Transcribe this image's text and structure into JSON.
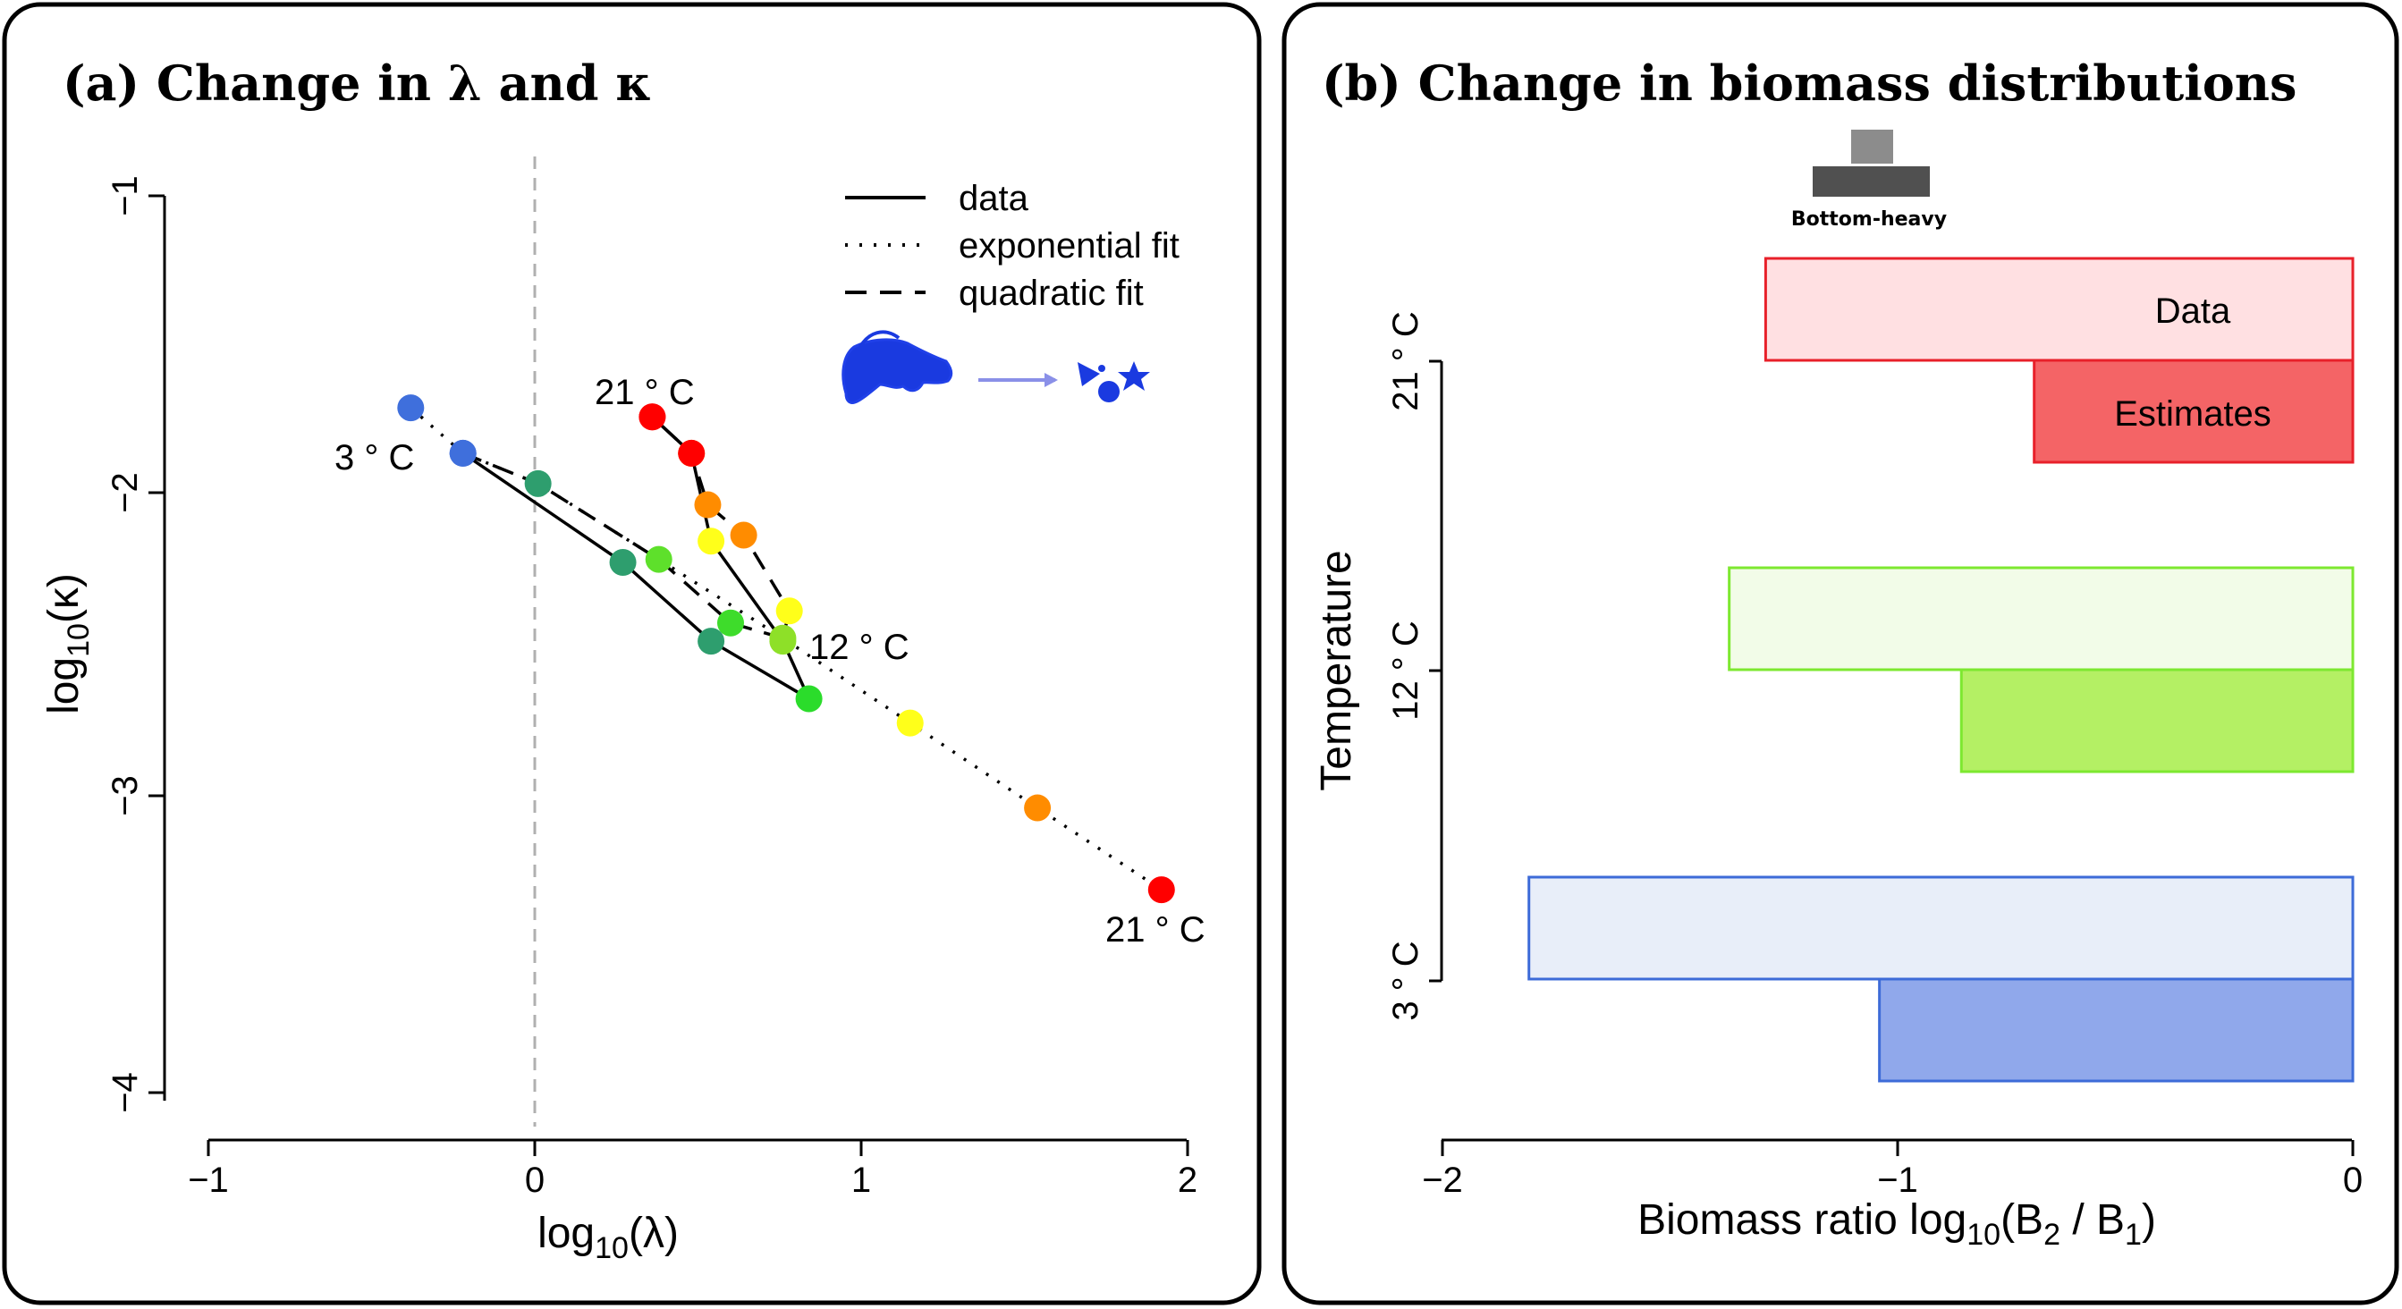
{
  "chart_data": [
    {
      "type": "scatter",
      "panel_title": "(a) Change in λ and κ",
      "xlabel": "log10(λ)",
      "ylabel": "log10(κ)",
      "xlim": [
        -1,
        2
      ],
      "ylim": [
        -4,
        -1
      ],
      "xticks": [
        "−1",
        "0",
        "1",
        "2"
      ],
      "yticks": [
        "−1",
        "−2",
        "−3",
        "−4"
      ],
      "reference_line_x": 0,
      "legend": [
        {
          "label": "data",
          "style": "solid"
        },
        {
          "label": "exponential fit",
          "style": "dotted"
        },
        {
          "label": "quadratic fit",
          "style": "dashed"
        }
      ],
      "series": [
        {
          "name": "data",
          "points": [
            [
              -0.22,
              -1.87
            ],
            [
              0.27,
              -2.23
            ],
            [
              0.54,
              -2.49
            ],
            [
              0.84,
              -2.68
            ],
            [
              0.76,
              -2.49
            ],
            [
              0.54,
              -2.16
            ],
            [
              0.48,
              -1.87
            ],
            [
              0.36,
              -1.75
            ]
          ],
          "colors": [
            "#3f6fdc",
            "#2e9e6e",
            "#2e9e6e",
            "#2bdc2b",
            "#8ee028",
            "#ffff1a",
            "#ff8c00",
            "#ff0000"
          ]
        },
        {
          "name": "quadratic fit",
          "points": [
            [
              -0.22,
              -1.87
            ],
            [
              0.01,
              -1.97
            ],
            [
              0.38,
              -2.22
            ],
            [
              0.6,
              -2.43
            ],
            [
              0.76,
              -2.48
            ],
            [
              0.78,
              -2.39
            ],
            [
              0.64,
              -2.14
            ],
            [
              0.53,
              -2.04
            ],
            [
              0.48,
              -1.87
            ],
            [
              0.36,
              -1.75
            ]
          ],
          "colors": [
            "#3f6fdc",
            "#2e9e6e",
            "#5ee02b",
            "#3edc2b",
            "#8ee028",
            "#ffff1a",
            "#ff8c00",
            "#ff8c00",
            "#ff0000",
            "#ff0000"
          ]
        },
        {
          "name": "exponential fit",
          "points": [
            [
              -0.38,
              -1.72
            ],
            [
              1.15,
              -2.76
            ],
            [
              1.54,
              -3.04
            ],
            [
              1.92,
              -3.31
            ]
          ],
          "colors": [
            "#3f6fdc",
            "#ffff1a",
            "#ff8c00",
            "#ff0000"
          ]
        }
      ],
      "annotations": [
        "3 ° C",
        "21 ° C",
        "12 ° C",
        "21 ° C"
      ]
    },
    {
      "type": "bar",
      "orientation": "horizontal",
      "panel_title": "(b) Change in biomass distributions",
      "xlabel": "Biomass ratio log10(B2 / B1)",
      "ylabel": "Temperature",
      "xlim": [
        -2,
        0
      ],
      "xticks": [
        "−2",
        "−1",
        "0"
      ],
      "categories": [
        "21 ° C",
        "12 ° C",
        "3 ° C"
      ],
      "series": [
        {
          "name": "Data",
          "values": [
            -1.29,
            -1.37,
            -1.81
          ]
        },
        {
          "name": "Estimates",
          "values": [
            -0.7,
            -0.86,
            -1.04
          ]
        }
      ],
      "colors": {
        "21": {
          "stroke": "#e8202a",
          "light": "#ffe0e2",
          "dark": "#f46466"
        },
        "12": {
          "stroke": "#7de830",
          "light": "#f2fce8",
          "dark": "#b4f064"
        },
        "3": {
          "stroke": "#3d6bd8",
          "light": "#e8eef9",
          "dark": "#90a8eb"
        }
      },
      "inset_label": "Bottom-heavy"
    }
  ]
}
